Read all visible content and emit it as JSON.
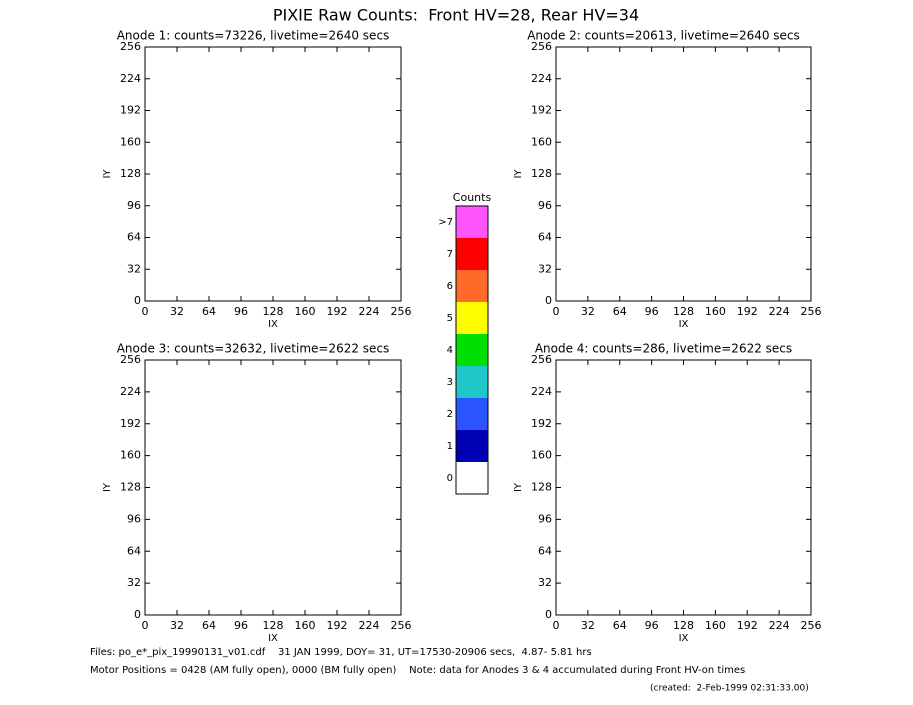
{
  "title": "PIXIE Raw Counts:  Front HV=28, Rear HV=34",
  "chart_data": [
    {
      "type": "heatmap",
      "title": "Anode 1: counts=73226, livetime=2640 secs",
      "xlabel": "IX",
      "ylabel": "IY",
      "xlim": [
        0,
        256
      ],
      "ylim": [
        0,
        256
      ],
      "xticks": [
        0,
        32,
        64,
        96,
        128,
        160,
        192,
        224,
        256
      ],
      "yticks": [
        0,
        32,
        64,
        96,
        128,
        160,
        192,
        224,
        256
      ]
    },
    {
      "type": "heatmap",
      "title": "Anode 2: counts=20613, livetime=2640 secs",
      "xlabel": "IX",
      "ylabel": "IY",
      "xlim": [
        0,
        256
      ],
      "ylim": [
        0,
        256
      ],
      "xticks": [
        0,
        32,
        64,
        96,
        128,
        160,
        192,
        224,
        256
      ],
      "yticks": [
        0,
        32,
        64,
        96,
        128,
        160,
        192,
        224,
        256
      ]
    },
    {
      "type": "heatmap",
      "title": "Anode 3: counts=32632, livetime=2622 secs",
      "xlabel": "IX",
      "ylabel": "IY",
      "xlim": [
        0,
        256
      ],
      "ylim": [
        0,
        256
      ],
      "xticks": [
        0,
        32,
        64,
        96,
        128,
        160,
        192,
        224,
        256
      ],
      "yticks": [
        0,
        32,
        64,
        96,
        128,
        160,
        192,
        224,
        256
      ]
    },
    {
      "type": "heatmap",
      "title": "Anode 4: counts=286, livetime=2622 secs",
      "xlabel": "IX",
      "ylabel": "IY",
      "xlim": [
        0,
        256
      ],
      "ylim": [
        0,
        256
      ],
      "xticks": [
        0,
        32,
        64,
        96,
        128,
        160,
        192,
        224,
        256
      ],
      "yticks": [
        0,
        32,
        64,
        96,
        128,
        160,
        192,
        224,
        256
      ]
    }
  ],
  "colorbar": {
    "title": "Counts",
    "labels": [
      "0",
      "1",
      "2",
      "3",
      "4",
      "5",
      "6",
      "7",
      ">7"
    ],
    "colors": [
      "#ffffff",
      "#0000b4",
      "#2a55ff",
      "#1ec8c8",
      "#00e000",
      "#ffff00",
      "#ff6a2a",
      "#ff0000",
      "#ff55ff"
    ]
  },
  "footer": [
    "Files: po_e*_pix_19990131_v01.cdf    31 JAN 1999, DOY= 31, UT=17530-20906 secs,  4.87- 5.81 hrs",
    "Motor Positions = 0428 (AM fully open), 0000 (BM fully open)    Note: data for Anodes 3 & 4 accumulated during Front HV-on times",
    "(created:  2-Feb-1999 02:31:33.00)"
  ]
}
